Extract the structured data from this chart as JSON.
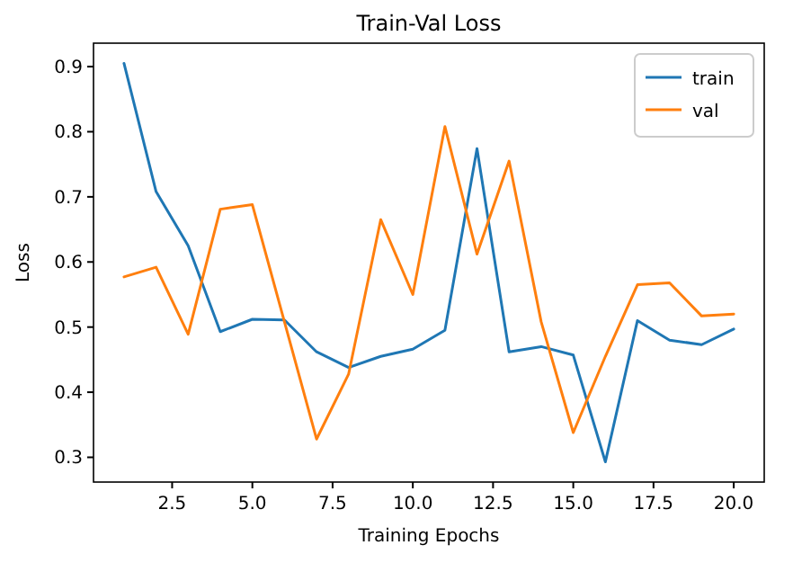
{
  "chart_data": {
    "type": "line",
    "title": "Train-Val Loss",
    "xlabel": "Training Epochs",
    "ylabel": "Loss",
    "x": [
      1,
      2,
      3,
      4,
      5,
      6,
      7,
      8,
      9,
      10,
      11,
      12,
      13,
      14,
      15,
      16,
      17,
      18,
      19,
      20
    ],
    "series": [
      {
        "name": "train",
        "color": "#1f77b4",
        "values": [
          0.905,
          0.708,
          0.625,
          0.493,
          0.512,
          0.511,
          0.462,
          0.438,
          0.455,
          0.466,
          0.495,
          0.774,
          0.462,
          0.47,
          0.457,
          0.293,
          0.51,
          0.48,
          0.473,
          0.497
        ]
      },
      {
        "name": "val",
        "color": "#ff7f0e",
        "values": [
          0.577,
          0.592,
          0.489,
          0.681,
          0.688,
          0.508,
          0.328,
          0.428,
          0.665,
          0.55,
          0.808,
          0.612,
          0.755,
          0.508,
          0.338,
          0.455,
          0.565,
          0.568,
          0.517,
          0.52
        ]
      }
    ],
    "xlim": [
      0.05,
      20.95
    ],
    "xticks": [
      {
        "value": 2.5,
        "label": "2.5"
      },
      {
        "value": 5,
        "label": "5.0"
      },
      {
        "value": 7.5,
        "label": "7.5"
      },
      {
        "value": 10,
        "label": "10.0"
      },
      {
        "value": 12.5,
        "label": "12.5"
      },
      {
        "value": 15,
        "label": "15.0"
      },
      {
        "value": 17.5,
        "label": "17.5"
      },
      {
        "value": 20,
        "label": "20.0"
      }
    ],
    "ylim": [
      0.262,
      0.936
    ],
    "yticks": [
      0.3,
      0.4,
      0.5,
      0.6,
      0.7,
      0.8,
      0.9
    ],
    "legend": "top right",
    "grid": false,
    "marker": "none",
    "line_style": "solid"
  }
}
